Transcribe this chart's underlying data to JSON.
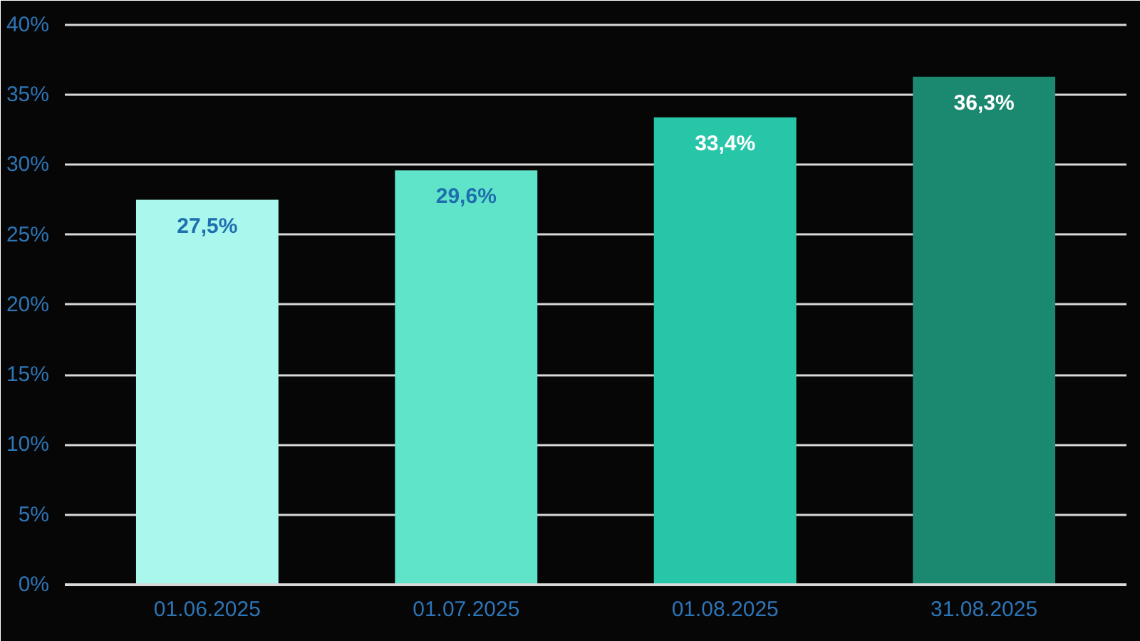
{
  "chart_data": {
    "type": "bar",
    "categories": [
      "01.06.2025",
      "01.07.2025",
      "01.08.2025",
      "31.08.2025"
    ],
    "values": [
      27.5,
      29.6,
      33.4,
      36.3
    ],
    "colors": [
      "#aaf7ee",
      "#5fe3c9",
      "#28c6a8",
      "#1b8870"
    ],
    "value_labels": [
      "27,5%",
      "29,6%",
      "33,4%",
      "36,3%"
    ],
    "ylim": [
      0,
      40
    ],
    "yticks": [
      {
        "value": 0,
        "label": "0%"
      },
      {
        "value": 5,
        "label": "5%"
      },
      {
        "value": 10,
        "label": "10%"
      },
      {
        "value": 15,
        "label": "15%"
      },
      {
        "value": 20,
        "label": "20%"
      },
      {
        "value": 25,
        "label": "25%"
      },
      {
        "value": 30,
        "label": "30%"
      },
      {
        "value": 35,
        "label": "35%"
      },
      {
        "value": 40,
        "label": "40%"
      }
    ],
    "grid": "y"
  }
}
